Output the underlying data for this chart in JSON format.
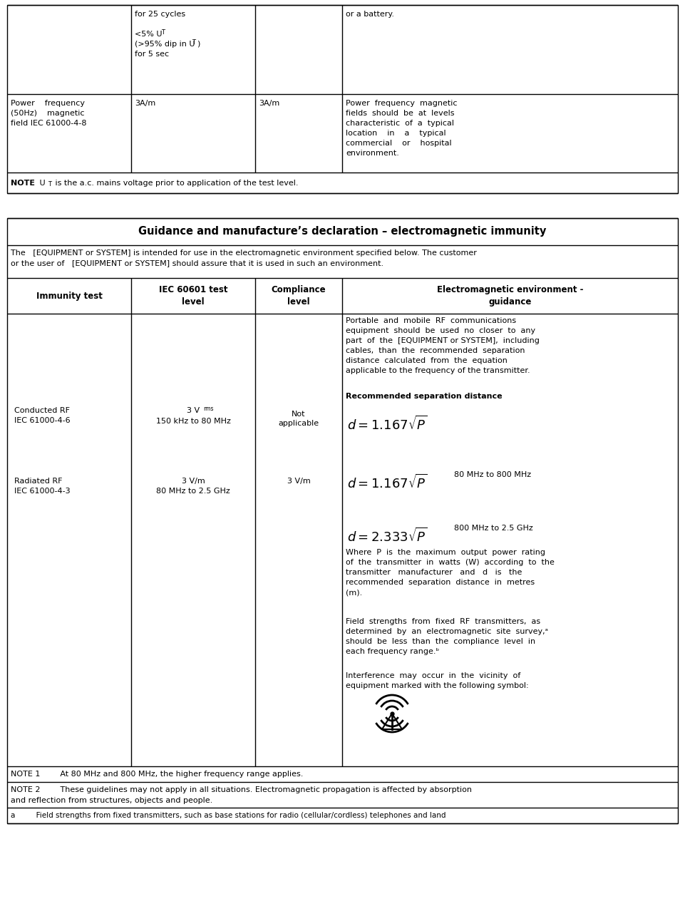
{
  "bg_color": "#ffffff",
  "title2": "Guidance and manufacture’s declaration – electromagnetic immunity",
  "intro_line1": "The   [EQUIPMENT or SYSTEM] is intended for use in the electromagnetic environment specified below. The customer",
  "intro_line2": "or the user of   [EQUIPMENT or SYSTEM] should assure that it is used in such an environment.",
  "col_headers": [
    "Immunity test",
    "IEC 60601 test\nlevel",
    "Compliance\nlevel",
    "Electromagnetic environment -\nguidance"
  ],
  "note1": "NOTE 1        At 80 MHz and 800 MHz, the higher frequency range applies.",
  "note2_line1": "NOTE 2        These guidelines may not apply in all situations. Electromagnetic propagation is affected by absorption",
  "note2_line2": "and reflection from structures, objects and people.",
  "note_a": "a         Field strengths from fixed transmitters, such as base stations for radio (cellular/cordless) telephones and land"
}
